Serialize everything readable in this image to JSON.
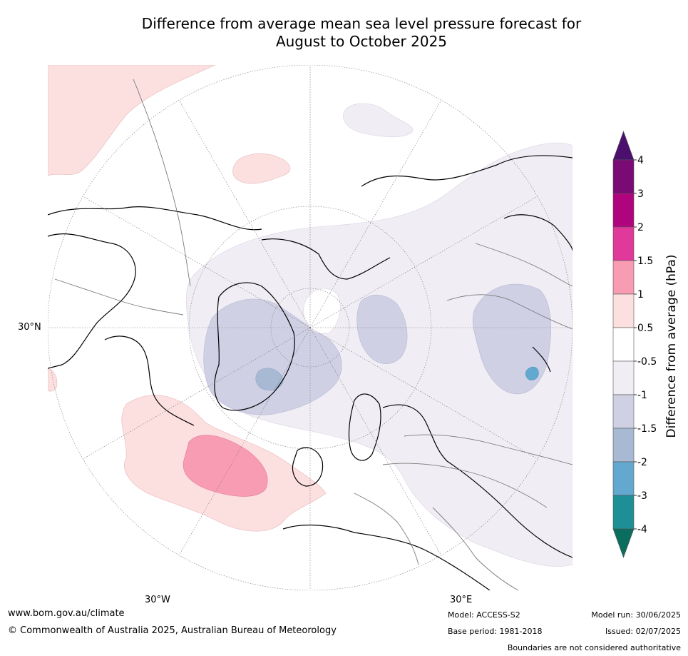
{
  "title_line1": "Difference from average mean sea level pressure forecast for",
  "title_line2": "August to October 2025",
  "graticule_labels": {
    "lat": "30°N",
    "lon_w": "30°W",
    "lon_e": "30°E"
  },
  "legend": {
    "label": "Difference from average (hPa)",
    "ticks": [
      "4",
      "3",
      "2",
      "1.5",
      "1",
      "0.5",
      "-0.5",
      "-1",
      "-1.5",
      "-2",
      "-3",
      "-4"
    ],
    "colors": [
      "#4b0f6e",
      "#7a0a74",
      "#b0047e",
      "#e0399b",
      "#f89cb3",
      "#fcdfdf",
      "#ffffff",
      "#f1edf4",
      "#cfd0e4",
      "#a8b9d4",
      "#62a8cf",
      "#1e8f96",
      "#0a6d5d"
    ]
  },
  "footer": {
    "url": "www.bom.gov.au/climate",
    "copyright": "© Commonwealth of Australia 2025, Australian Bureau of Meteorology",
    "model": "Model: ACCESS-S2",
    "base_period": "Base period: 1981-2018",
    "model_run": "Model run: 30/06/2025",
    "issued": "Issued: 02/07/2025",
    "disclaimer": "Boundaries are not considered authoritative"
  }
}
